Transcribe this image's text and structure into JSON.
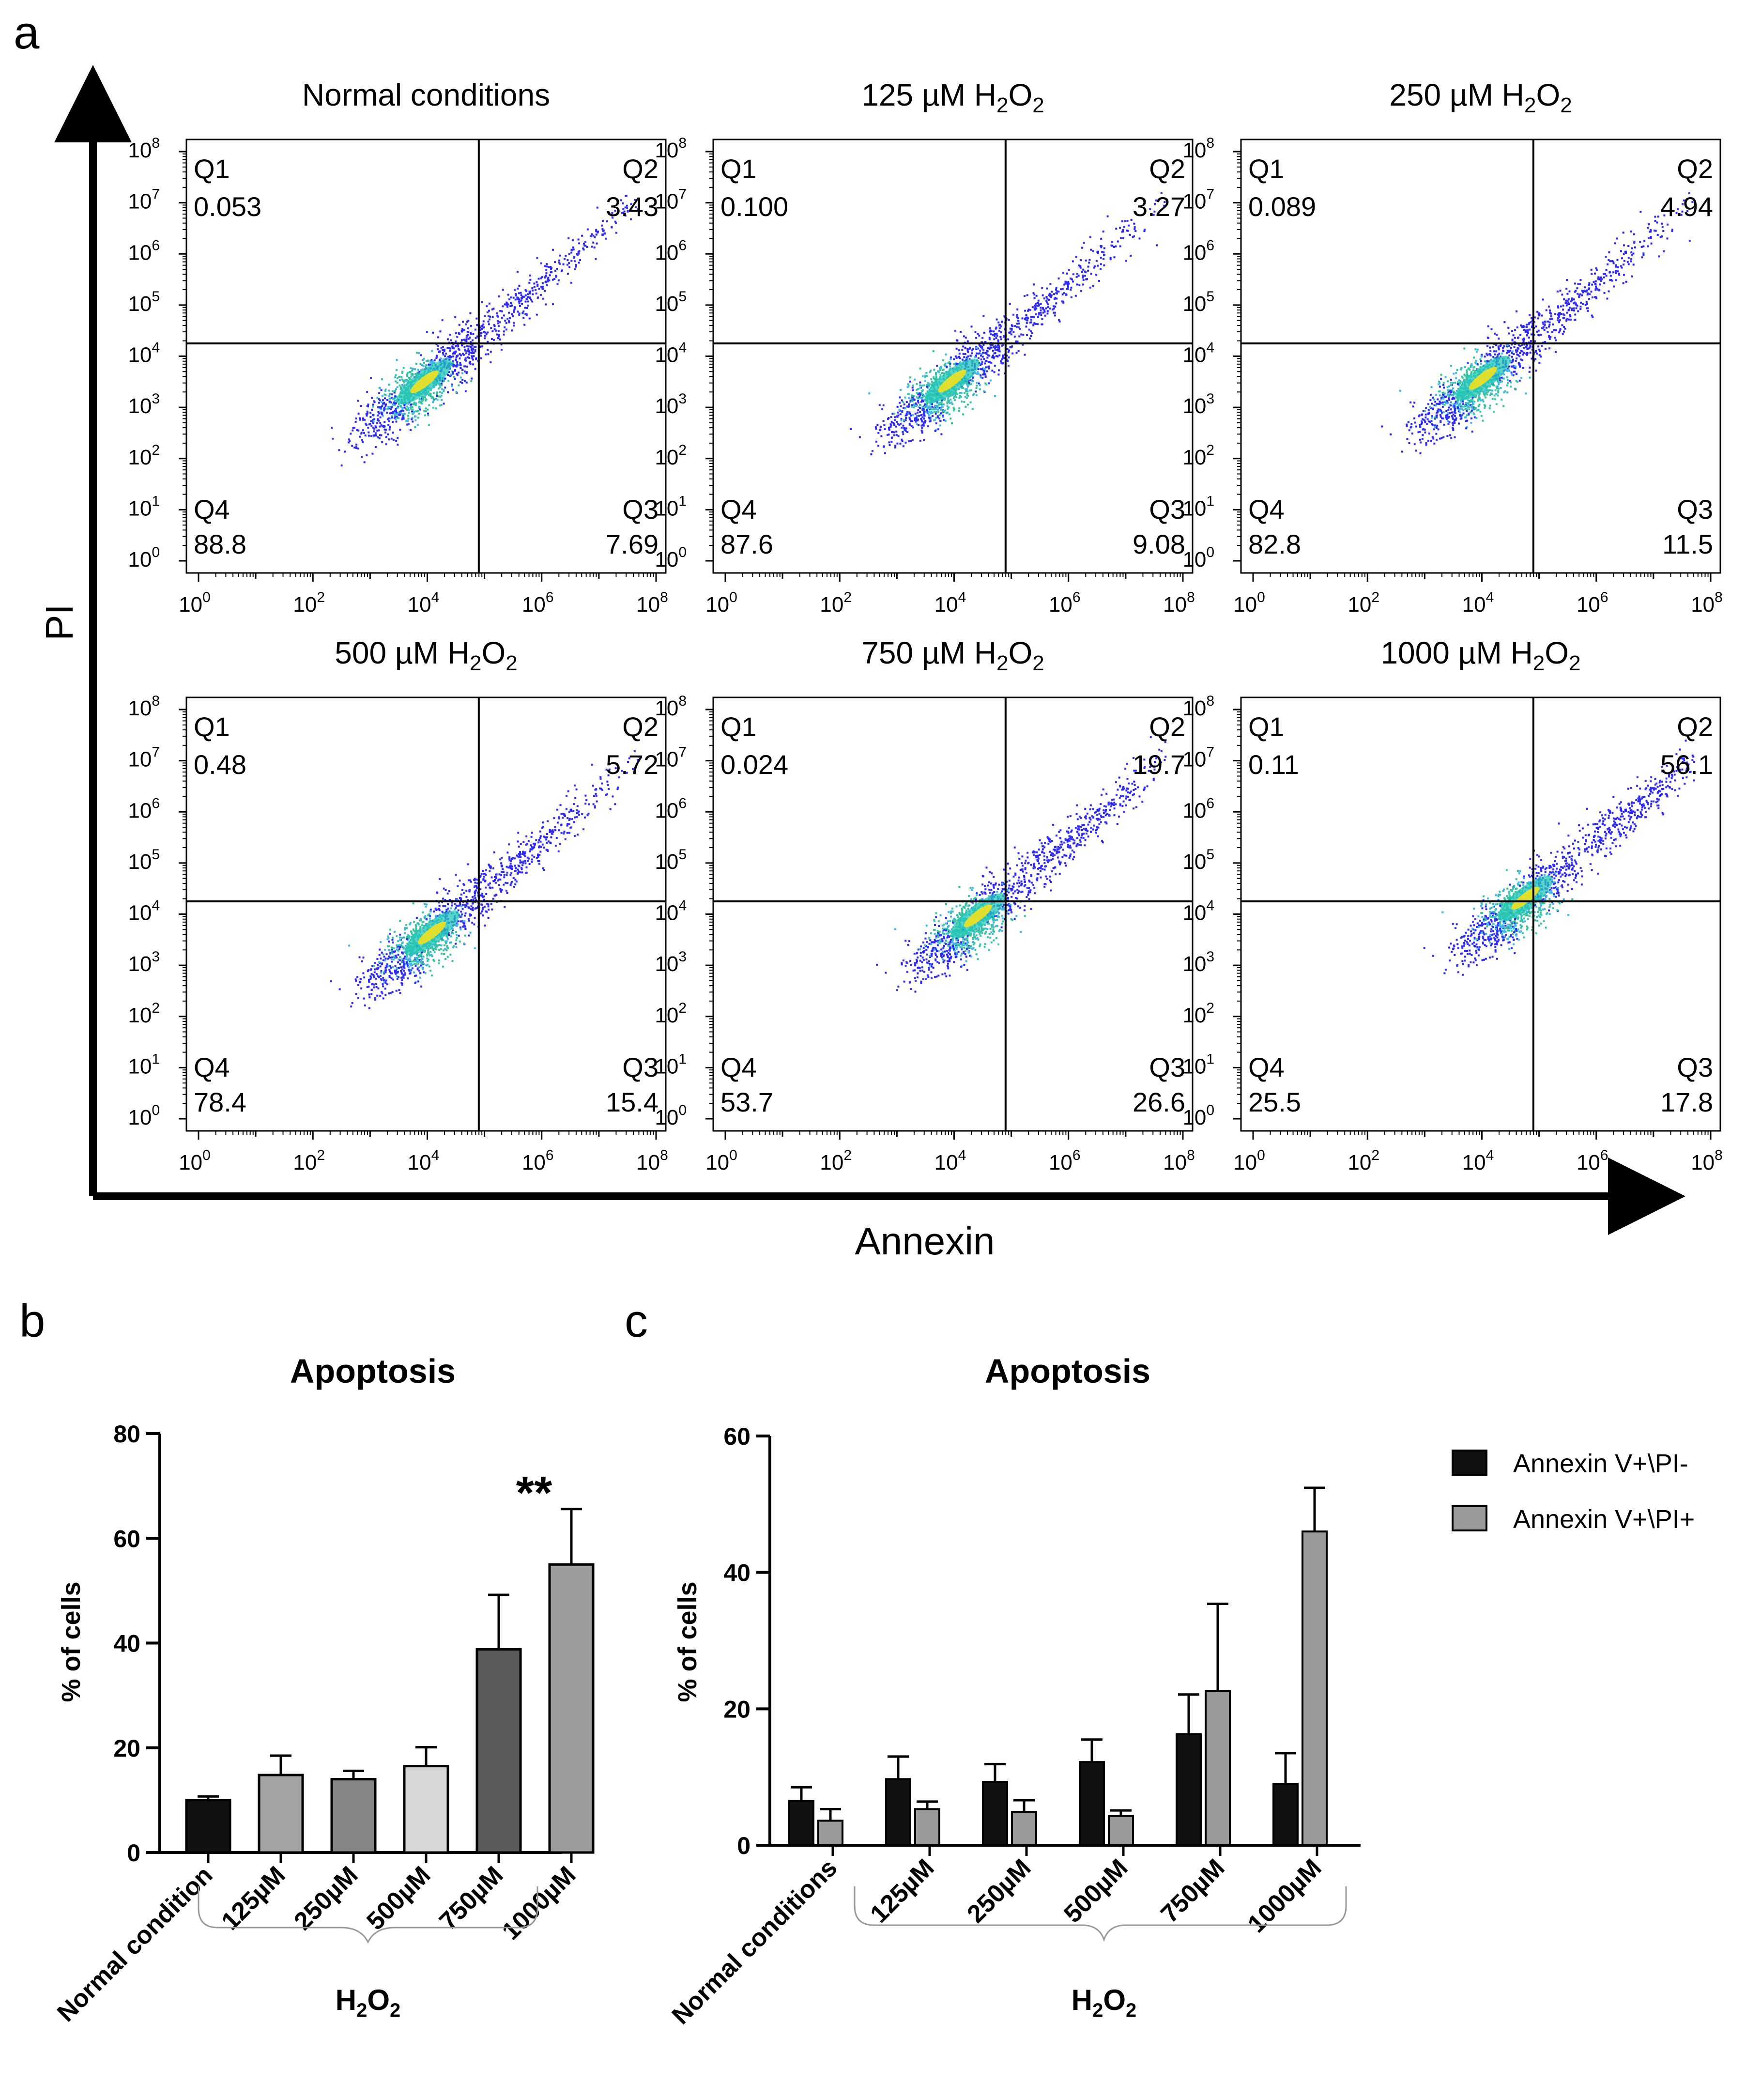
{
  "panel_letters": {
    "a": "a",
    "b": "b",
    "c": "c"
  },
  "chart_data": [
    {
      "type": "scatter",
      "panel": "a",
      "subtitle": "Flow cytometry density plots (Annexin vs PI)",
      "xlabel": "Annexin",
      "ylabel": "PI",
      "xtick_base": "10",
      "xtick_exps": [
        "0",
        "2",
        "4",
        "6",
        "8"
      ],
      "ytick_base": "10",
      "ytick_exps": [
        "8",
        "7",
        "6",
        "5",
        "4",
        "3",
        "2",
        "1",
        "0"
      ],
      "xlim": [
        0,
        8
      ],
      "ylim": [
        0,
        8
      ],
      "gate": {
        "x": 4.9,
        "y": 4.25
      },
      "quadrant_labels": [
        "Q1",
        "Q2",
        "Q3",
        "Q4"
      ],
      "plots": [
        {
          "title_main": "Normal conditions",
          "title_sub": "",
          "title_tail": "",
          "q1": "0.053",
          "q2": "3.43",
          "q3": "7.69",
          "q4": "88.8"
        },
        {
          "title_main": "125 µM H",
          "title_sub": "2",
          "title_tail": "O",
          "title_sub2": "2",
          "q1": "0.100",
          "q2": "3.27",
          "q3": "9.08",
          "q4": "87.6"
        },
        {
          "title_main": "250 µM H",
          "title_sub": "2",
          "title_tail": "O",
          "title_sub2": "2",
          "q1": "0.089",
          "q2": "4.94",
          "q3": "11.5",
          "q4": "82.8"
        },
        {
          "title_main": "500 µM H",
          "title_sub": "2",
          "title_tail": "O",
          "title_sub2": "2",
          "q1": "0.48",
          "q2": "5.72",
          "q3": "15.4",
          "q4": "78.4"
        },
        {
          "title_main": "750 µM H",
          "title_sub": "2",
          "title_tail": "O",
          "title_sub2": "2",
          "q1": "0.024",
          "q2": "19.7",
          "q3": "26.6",
          "q4": "53.7"
        },
        {
          "title_main": "1000 µM H",
          "title_sub": "2",
          "title_tail": "O",
          "title_sub2": "2",
          "q1": "0.11",
          "q2": "56.1",
          "q3": "17.8",
          "q4": "25.5"
        }
      ]
    },
    {
      "type": "bar",
      "panel": "b",
      "title": "Apoptosis",
      "ylabel": "% of cells",
      "ylim": [
        0,
        80
      ],
      "yticks": [
        "0",
        "20",
        "40",
        "60",
        "80"
      ],
      "categories": [
        "Normal condition",
        "125µM",
        "250µM",
        "500µM",
        "750µM",
        "1000µM"
      ],
      "values": [
        10,
        14.8,
        14,
        16.5,
        38.8,
        55
      ],
      "errors": [
        0.7,
        3.7,
        1.6,
        3.6,
        10.4,
        10.6
      ],
      "colors": [
        "#111111",
        "#a3a3a3",
        "#858585",
        "#d8d8d8",
        "#5a5a5a",
        "#9c9c9c"
      ],
      "annotation": "**",
      "group_label": {
        "main": "H",
        "sub1": "2",
        "mid": "O",
        "sub2": "2"
      }
    },
    {
      "type": "bar",
      "panel": "c",
      "title": "Apoptosis",
      "ylabel": "% of cells",
      "ylim": [
        0,
        60
      ],
      "yticks": [
        "0",
        "20",
        "40",
        "60"
      ],
      "categories": [
        "Normal conditions",
        "125µM",
        "250µM",
        "500µM",
        "750µM",
        "1000µM"
      ],
      "series": [
        {
          "name": "Annexin V+\\PI-",
          "color": "#111111",
          "values": [
            6.5,
            9.7,
            9.3,
            12.2,
            16.3,
            9.0
          ],
          "errors": [
            2.0,
            3.3,
            2.6,
            3.3,
            5.8,
            4.5
          ]
        },
        {
          "name": "Annexin V+\\PI+",
          "color": "#9a9a9a",
          "values": [
            3.6,
            5.3,
            4.9,
            4.3,
            22.6,
            46.0
          ],
          "errors": [
            1.7,
            1.1,
            1.7,
            0.8,
            12.8,
            6.4
          ]
        }
      ],
      "group_label": {
        "main": "H",
        "sub1": "2",
        "mid": "O",
        "sub2": "2"
      }
    }
  ]
}
